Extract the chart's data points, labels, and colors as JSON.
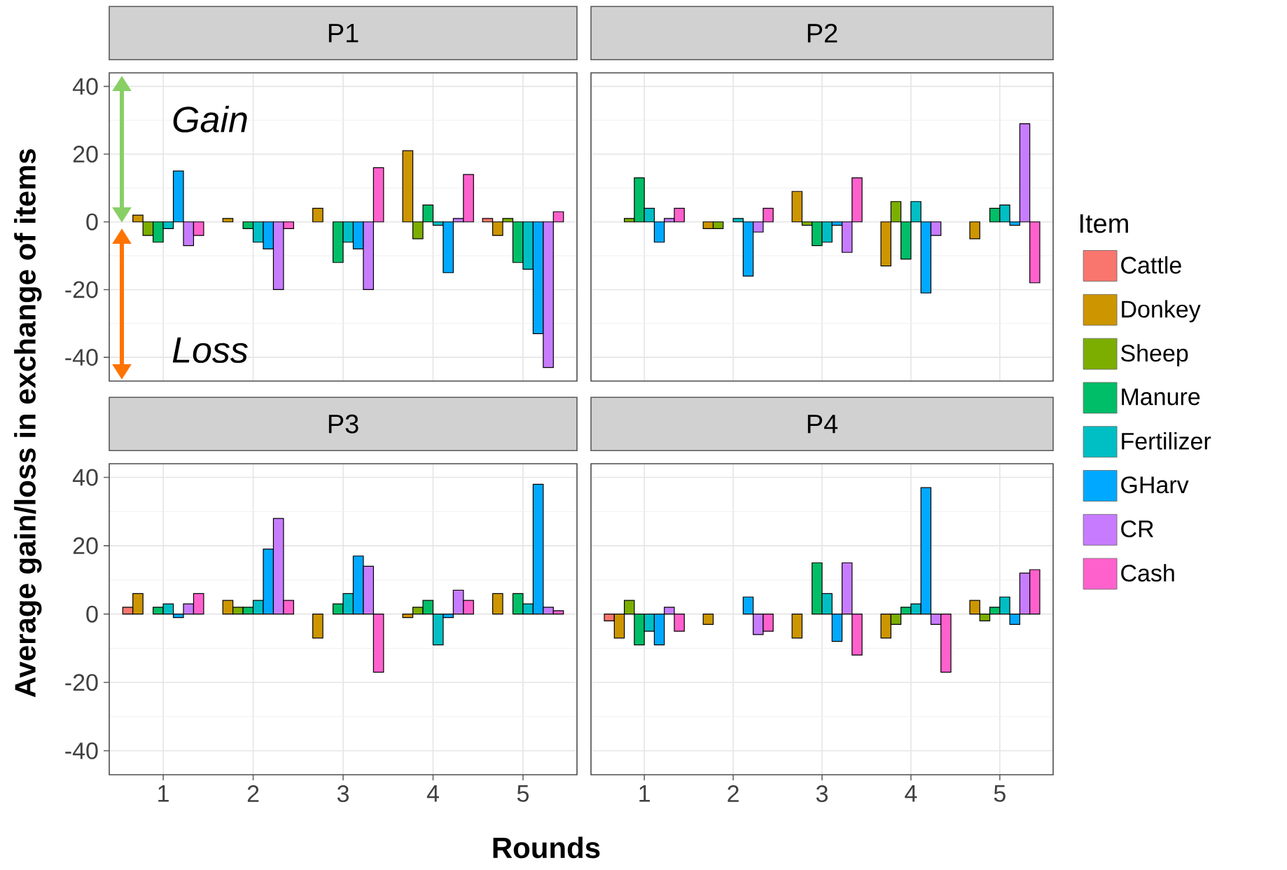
{
  "chart_data": [
    {
      "type": "bar",
      "title": "P1",
      "ylabel": "Average gain/loss in exchange of items",
      "annotations": [
        "Gain",
        "Loss"
      ],
      "categories": [
        "1",
        "2",
        "3",
        "4",
        "5"
      ],
      "ylim": [
        -47,
        44
      ],
      "yticks": [
        -40,
        -20,
        0,
        20,
        40
      ],
      "grid": true,
      "tick_labels": "y",
      "series": [
        {
          "color": "#F8766D",
          "values": [
            0,
            0,
            0,
            0,
            1
          ]
        },
        {
          "color": "#CD9600",
          "values": [
            2,
            1,
            4,
            21,
            -4
          ]
        },
        {
          "color": "#7CAE00",
          "values": [
            -4,
            0,
            0,
            -5,
            1
          ]
        },
        {
          "color": "#00BE67",
          "values": [
            -6,
            -2,
            -12,
            5,
            -12
          ]
        },
        {
          "color": "#00BFC4",
          "values": [
            -2,
            -6,
            -6,
            -1,
            -14
          ]
        },
        {
          "color": "#00A9FF",
          "values": [
            15,
            -8,
            -8,
            -15,
            -33
          ]
        },
        {
          "color": "#C77CFF",
          "values": [
            -7,
            -20,
            -20,
            1,
            -43
          ]
        },
        {
          "color": "#FF61CC",
          "values": [
            -4,
            -2,
            16,
            14,
            3
          ]
        }
      ]
    },
    {
      "type": "bar",
      "title": "P2",
      "legend": "right",
      "legend_title": "Item",
      "categories": [
        "1",
        "2",
        "3",
        "4",
        "5"
      ],
      "ylim": [
        -47,
        44
      ],
      "yticks": [
        -40,
        -20,
        0,
        20,
        40
      ],
      "grid": true,
      "tick_labels": false,
      "series": [
        {
          "name": "Cattle",
          "color": "#F8766D",
          "values": [
            0,
            0,
            0,
            0,
            0
          ]
        },
        {
          "name": "Donkey",
          "color": "#CD9600",
          "values": [
            0,
            -2,
            9,
            -13,
            -5
          ]
        },
        {
          "name": "Sheep",
          "color": "#7CAE00",
          "values": [
            1,
            -2,
            -1,
            6,
            0
          ]
        },
        {
          "name": "Manure",
          "color": "#00BE67",
          "values": [
            13,
            0,
            -7,
            -11,
            4
          ]
        },
        {
          "name": "Fertilizer",
          "color": "#00BFC4",
          "values": [
            4,
            1,
            -6,
            6,
            5
          ]
        },
        {
          "name": "GHarv",
          "color": "#00A9FF",
          "values": [
            -6,
            -16,
            -1,
            -21,
            -1
          ]
        },
        {
          "name": "CR",
          "color": "#C77CFF",
          "values": [
            1,
            -3,
            -9,
            -4,
            29
          ]
        },
        {
          "name": "Cash",
          "color": "#FF61CC",
          "values": [
            4,
            4,
            13,
            0,
            -18
          ]
        }
      ]
    },
    {
      "type": "bar",
      "title": "P3",
      "xlabel": "Rounds",
      "categories": [
        "1",
        "2",
        "3",
        "4",
        "5"
      ],
      "ylim": [
        -47,
        44
      ],
      "yticks": [
        -40,
        -20,
        0,
        20,
        40
      ],
      "grid": true,
      "series": [
        {
          "color": "#F8766D",
          "values": [
            2,
            0,
            0,
            0,
            0
          ]
        },
        {
          "color": "#CD9600",
          "values": [
            6,
            4,
            -7,
            -1,
            6
          ]
        },
        {
          "color": "#7CAE00",
          "values": [
            0,
            2,
            0,
            2,
            0
          ]
        },
        {
          "color": "#00BE67",
          "values": [
            2,
            2,
            3,
            4,
            6
          ]
        },
        {
          "color": "#00BFC4",
          "values": [
            3,
            4,
            6,
            -9,
            3
          ]
        },
        {
          "color": "#00A9FF",
          "values": [
            -1,
            19,
            17,
            -1,
            38
          ]
        },
        {
          "color": "#C77CFF",
          "values": [
            3,
            28,
            14,
            7,
            2
          ]
        },
        {
          "color": "#FF61CC",
          "values": [
            6,
            4,
            -17,
            4,
            1
          ]
        }
      ]
    },
    {
      "type": "bar",
      "title": "P4",
      "categories": [
        "1",
        "2",
        "3",
        "4",
        "5"
      ],
      "ylim": [
        -47,
        44
      ],
      "yticks": [
        -40,
        -20,
        0,
        20,
        40
      ],
      "grid": true,
      "tick_labels": "x",
      "series": [
        {
          "color": "#F8766D",
          "values": [
            -2,
            0,
            0,
            0,
            0
          ]
        },
        {
          "color": "#CD9600",
          "values": [
            -7,
            -3,
            -7,
            -7,
            4
          ]
        },
        {
          "color": "#7CAE00",
          "values": [
            4,
            0,
            0,
            -3,
            -2
          ]
        },
        {
          "color": "#00BE67",
          "values": [
            -9,
            0,
            15,
            2,
            2
          ]
        },
        {
          "color": "#00BFC4",
          "values": [
            -5,
            0,
            6,
            3,
            5
          ]
        },
        {
          "color": "#00A9FF",
          "values": [
            -9,
            5,
            -8,
            37,
            -3
          ]
        },
        {
          "color": "#C77CFF",
          "values": [
            2,
            -6,
            15,
            -3,
            12
          ]
        },
        {
          "color": "#FF61CC",
          "values": [
            -5,
            -5,
            -12,
            -17,
            13
          ]
        }
      ]
    }
  ]
}
